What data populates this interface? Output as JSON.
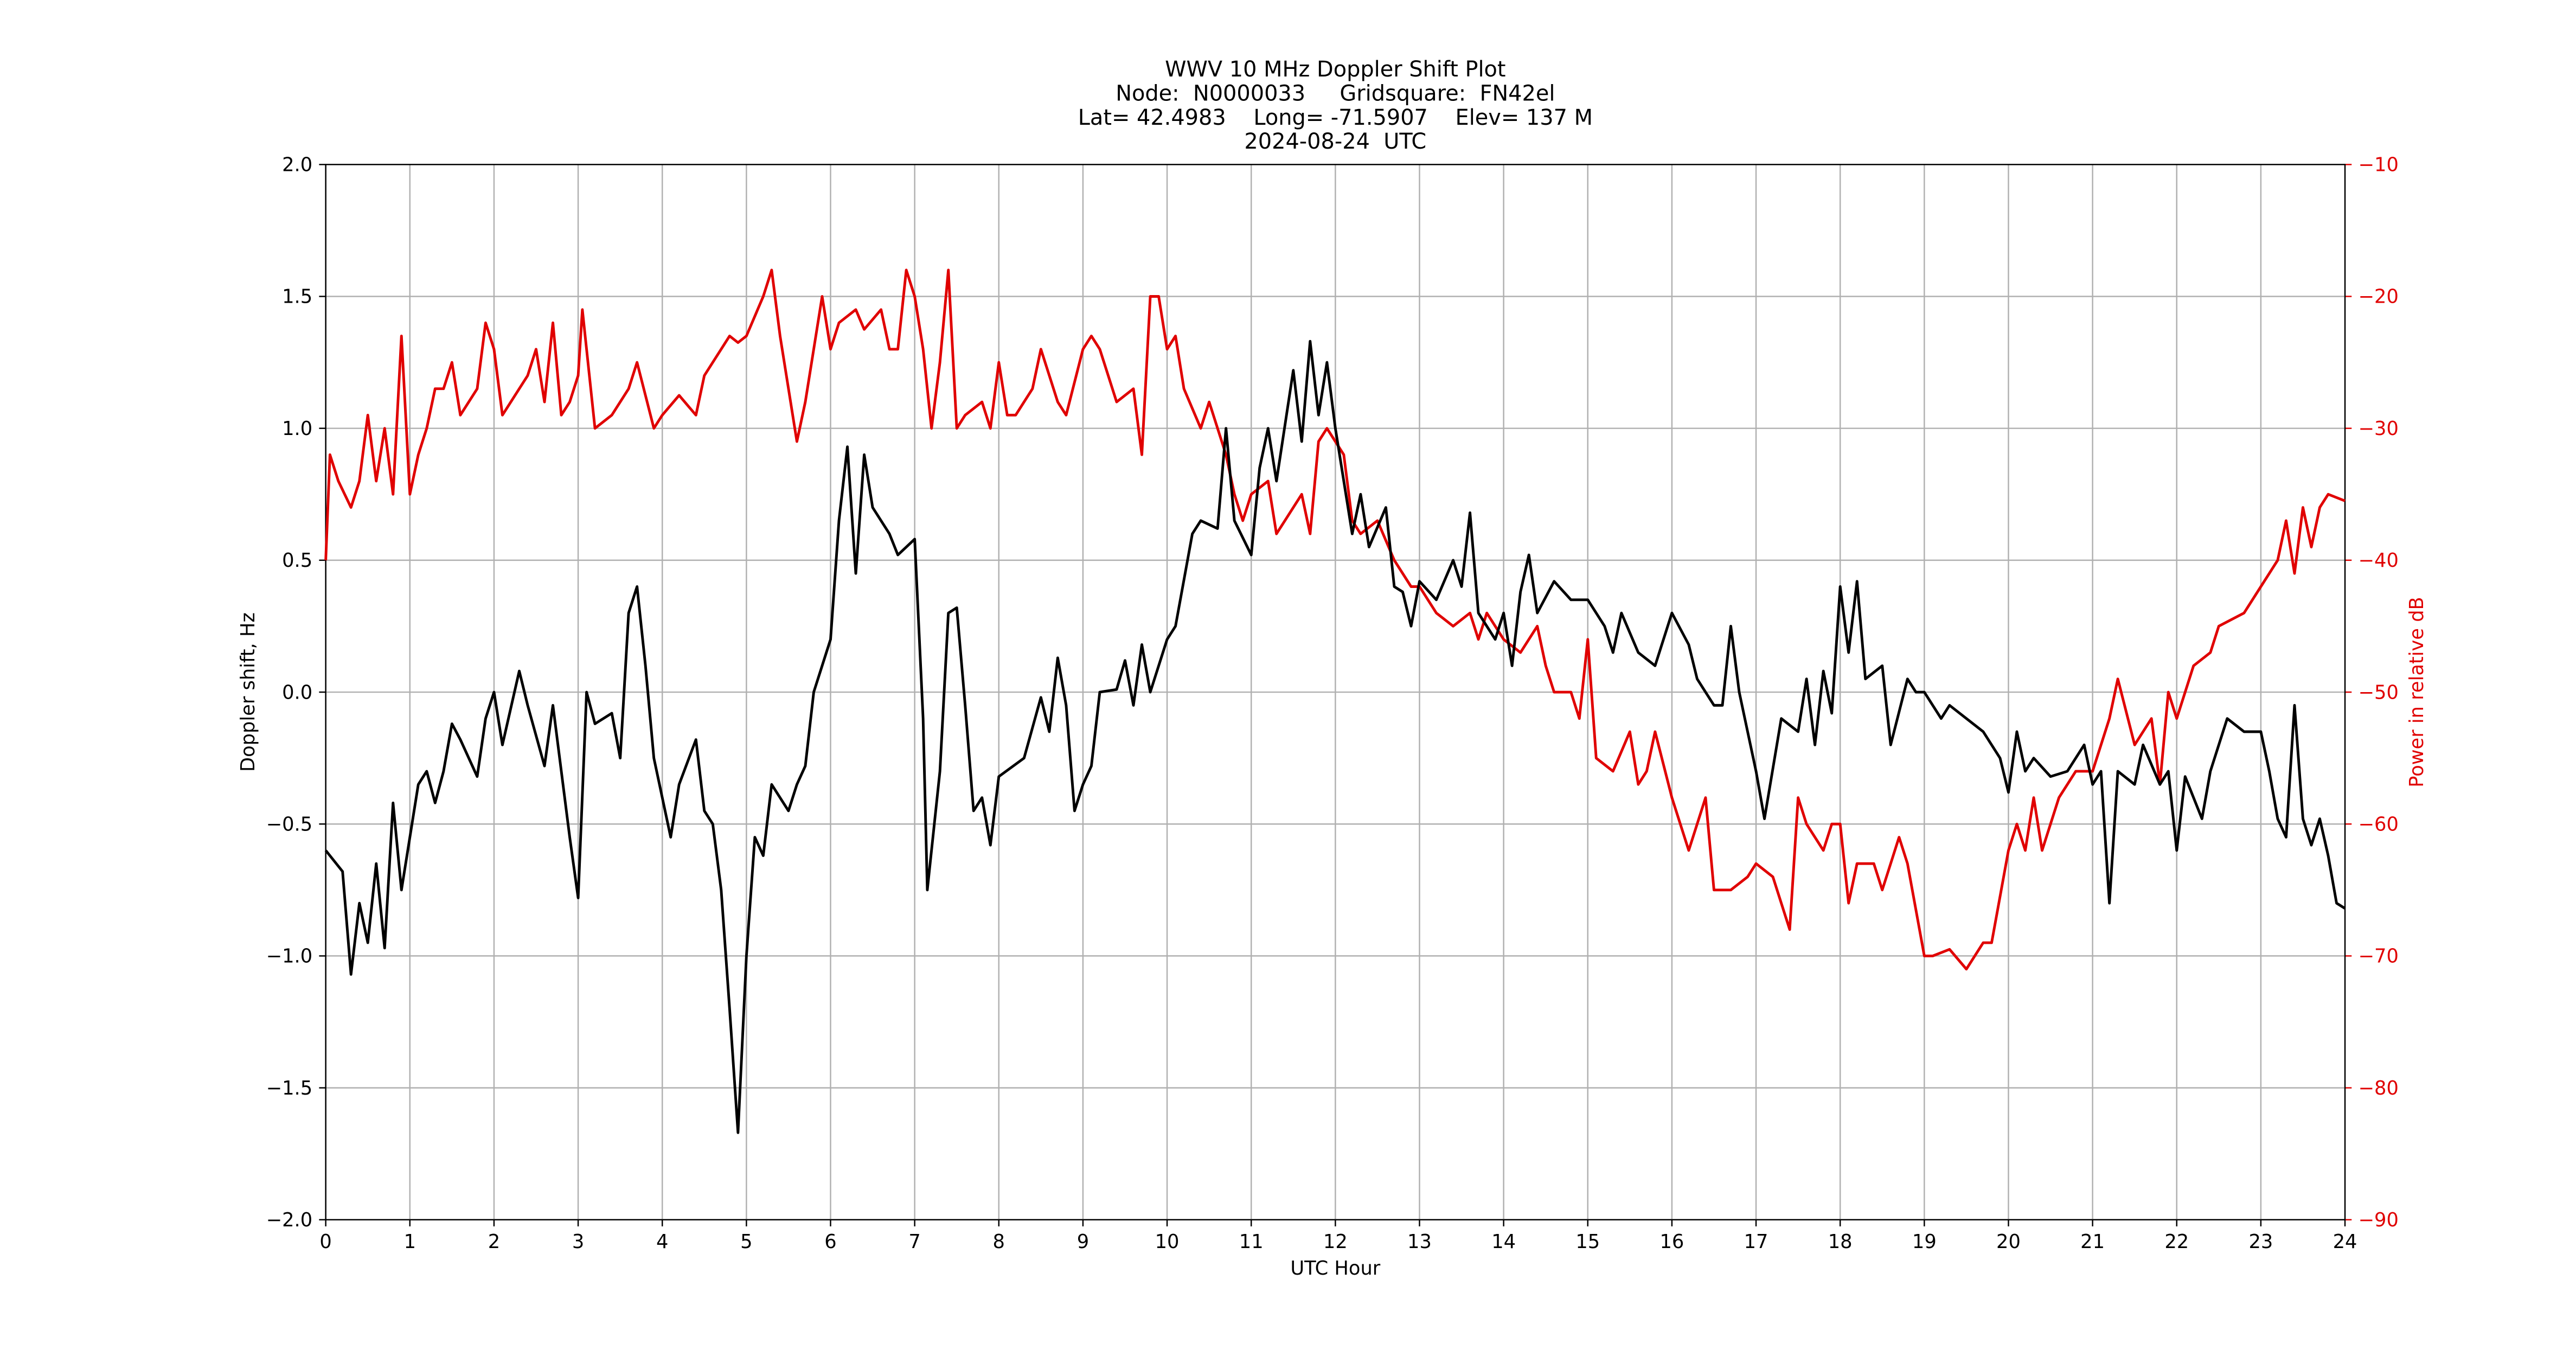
{
  "chart_data": {
    "type": "line",
    "title": [
      "WWV 10 MHz Doppler Shift Plot",
      "Node:  N0000033     Gridsquare:  FN42el",
      "Lat= 42.4983    Long= -71.5907    Elev= 137 M",
      "2024-08-24  UTC"
    ],
    "xlabel": "UTC Hour",
    "ylabel": "Doppler shift, Hz",
    "y2label": "Power in relative dB",
    "xlim": [
      0,
      24
    ],
    "xticks": [
      0,
      1,
      2,
      3,
      4,
      5,
      6,
      7,
      8,
      9,
      10,
      11,
      12,
      13,
      14,
      15,
      16,
      17,
      18,
      19,
      20,
      21,
      22,
      23,
      24
    ],
    "ylim": [
      -2,
      2
    ],
    "yticks": [
      {
        "value": -2,
        "label": "−2.0"
      },
      {
        "value": -1.5,
        "label": "−1.5"
      },
      {
        "value": -1,
        "label": "−1.0"
      },
      {
        "value": -0.5,
        "label": "−0.5"
      },
      {
        "value": 0,
        "label": "0.0"
      },
      0.5,
      {
        "value": 1,
        "label": "1.0"
      },
      1.5,
      {
        "value": 2,
        "label": "2.0"
      }
    ],
    "y2lim": [
      -90,
      -10
    ],
    "y2ticks": [
      {
        "value": -90,
        "label": "−90"
      },
      {
        "value": -80,
        "label": "−80"
      },
      {
        "value": -70,
        "label": "−70"
      },
      {
        "value": -60,
        "label": "−60"
      },
      {
        "value": -50,
        "label": "−50"
      },
      {
        "value": -40,
        "label": "−40"
      },
      {
        "value": -30,
        "label": "−30"
      },
      {
        "value": -20,
        "label": "−20"
      },
      {
        "value": -10,
        "label": "−10"
      }
    ],
    "grid": true,
    "series": [
      {
        "color": "#000000",
        "axis": "y",
        "x": [
          0,
          0.2,
          0.3,
          0.4,
          0.5,
          0.6,
          0.7,
          0.8,
          0.9,
          1,
          1.1,
          1.2,
          1.3,
          1.4,
          1.5,
          1.6,
          1.8,
          1.9,
          2,
          2.1,
          2.3,
          2.4,
          2.6,
          2.7,
          2.9,
          3,
          3.1,
          3.2,
          3.4,
          3.5,
          3.6,
          3.7,
          3.8,
          3.9,
          4.1,
          4.2,
          4.4,
          4.5,
          4.6,
          4.7,
          4.8,
          4.9,
          5,
          5.1,
          5.2,
          5.3,
          5.5,
          5.6,
          5.7,
          5.8,
          6,
          6.1,
          6.2,
          6.3,
          6.4,
          6.5,
          6.7,
          6.8,
          7,
          7.1,
          7.15,
          7.3,
          7.4,
          7.5,
          7.6,
          7.7,
          7.8,
          7.9,
          8,
          8.3,
          8.5,
          8.6,
          8.7,
          8.8,
          8.9,
          9,
          9.1,
          9.2,
          9.4,
          9.5,
          9.6,
          9.7,
          9.8,
          10,
          10.1,
          10.3,
          10.4,
          10.6,
          10.7,
          10.8,
          11,
          11.1,
          11.2,
          11.3,
          11.5,
          11.6,
          11.7,
          11.8,
          11.9,
          12,
          12.2,
          12.3,
          12.4,
          12.6,
          12.7,
          12.8,
          12.9,
          13,
          13.2,
          13.4,
          13.5,
          13.6,
          13.7,
          13.9,
          14,
          14.1,
          14.2,
          14.3,
          14.4,
          14.6,
          14.8,
          15,
          15.2,
          15.3,
          15.4,
          15.6,
          15.8,
          16,
          16.2,
          16.3,
          16.5,
          16.6,
          16.7,
          16.8,
          16.9,
          17,
          17.1,
          17.3,
          17.5,
          17.6,
          17.7,
          17.8,
          17.9,
          18,
          18.1,
          18.2,
          18.3,
          18.5,
          18.6,
          18.8,
          18.9,
          19,
          19.2,
          19.3,
          19.5,
          19.7,
          19.9,
          20,
          20.1,
          20.2,
          20.3,
          20.5,
          20.7,
          20.9,
          21,
          21.1,
          21.2,
          21.3,
          21.5,
          21.6,
          21.8,
          21.9,
          22,
          22.1,
          22.3,
          22.4,
          22.6,
          22.8,
          23,
          23.1,
          23.2,
          23.3,
          23.4,
          23.5,
          23.6,
          23.7,
          23.8,
          23.9,
          24
        ],
        "values": [
          -0.6,
          -0.68,
          -1.07,
          -0.8,
          -0.95,
          -0.65,
          -0.97,
          -0.42,
          -0.75,
          -0.55,
          -0.35,
          -0.3,
          -0.42,
          -0.3,
          -0.12,
          -0.18,
          -0.32,
          -0.1,
          0,
          -0.2,
          0.08,
          -0.05,
          -0.28,
          -0.05,
          -0.55,
          -0.78,
          0,
          -0.12,
          -0.08,
          -0.25,
          0.3,
          0.4,
          0.1,
          -0.25,
          -0.55,
          -0.35,
          -0.18,
          -0.45,
          -0.5,
          -0.75,
          -1.2,
          -1.67,
          -1,
          -0.55,
          -0.62,
          -0.35,
          -0.45,
          -0.35,
          -0.28,
          0,
          0.2,
          0.65,
          0.93,
          0.45,
          0.9,
          0.7,
          0.6,
          0.52,
          0.58,
          -0.1,
          -0.75,
          -0.3,
          0.3,
          0.32,
          -0.05,
          -0.45,
          -0.4,
          -0.58,
          -0.32,
          -0.25,
          -0.02,
          -0.15,
          0.13,
          -0.05,
          -0.45,
          -0.35,
          -0.28,
          0,
          0.01,
          0.12,
          -0.05,
          0.18,
          0,
          0.2,
          0.25,
          0.6,
          0.65,
          0.62,
          1,
          0.65,
          0.52,
          0.85,
          1,
          0.8,
          1.22,
          0.95,
          1.33,
          1.05,
          1.25,
          1,
          0.6,
          0.75,
          0.55,
          0.7,
          0.4,
          0.38,
          0.25,
          0.42,
          0.35,
          0.5,
          0.4,
          0.68,
          0.3,
          0.2,
          0.3,
          0.1,
          0.38,
          0.52,
          0.3,
          0.42,
          0.35,
          0.35,
          0.25,
          0.15,
          0.3,
          0.15,
          0.1,
          0.3,
          0.18,
          0.05,
          -0.05,
          -0.05,
          0.25,
          0,
          -0.15,
          -0.3,
          -0.48,
          -0.1,
          -0.15,
          0.05,
          -0.2,
          0.08,
          -0.08,
          0.4,
          0.15,
          0.42,
          0.05,
          0.1,
          -0.2,
          0.05,
          0,
          0,
          -0.1,
          -0.05,
          -0.1,
          -0.15,
          -0.25,
          -0.38,
          -0.15,
          -0.3,
          -0.25,
          -0.32,
          -0.3,
          -0.2,
          -0.35,
          -0.3,
          -0.8,
          -0.3,
          -0.35,
          -0.2,
          -0.35,
          -0.3,
          -0.6,
          -0.32,
          -0.48,
          -0.3,
          -0.1,
          -0.15,
          -0.15,
          -0.3,
          -0.48,
          -0.55,
          -0.05,
          -0.48,
          -0.58,
          -0.48,
          -0.62,
          -0.8,
          -0.82
        ]
      },
      {
        "color": "#e00000",
        "axis": "y2",
        "x": [
          0,
          0.05,
          0.15,
          0.3,
          0.4,
          0.5,
          0.6,
          0.7,
          0.8,
          0.9,
          1,
          1.1,
          1.2,
          1.3,
          1.4,
          1.5,
          1.6,
          1.8,
          1.9,
          2,
          2.1,
          2.3,
          2.4,
          2.5,
          2.6,
          2.7,
          2.8,
          2.9,
          3,
          3.05,
          3.2,
          3.4,
          3.6,
          3.7,
          3.9,
          4,
          4.2,
          4.4,
          4.5,
          4.6,
          4.8,
          4.9,
          5,
          5.2,
          5.3,
          5.4,
          5.6,
          5.7,
          5.9,
          6,
          6.1,
          6.3,
          6.4,
          6.6,
          6.7,
          6.8,
          6.9,
          7,
          7.1,
          7.2,
          7.3,
          7.4,
          7.5,
          7.6,
          7.8,
          7.9,
          8,
          8.1,
          8.2,
          8.4,
          8.5,
          8.6,
          8.7,
          8.8,
          9,
          9.1,
          9.2,
          9.4,
          9.6,
          9.7,
          9.8,
          9.9,
          10,
          10.1,
          10.2,
          10.4,
          10.5,
          10.7,
          10.8,
          10.9,
          11,
          11.2,
          11.3,
          11.4,
          11.6,
          11.7,
          11.8,
          11.9,
          12,
          12.1,
          12.2,
          12.3,
          12.5,
          12.7,
          12.9,
          13,
          13.2,
          13.4,
          13.6,
          13.7,
          13.8,
          14,
          14.2,
          14.4,
          14.5,
          14.6,
          14.8,
          14.9,
          15,
          15.1,
          15.3,
          15.5,
          15.6,
          15.7,
          15.8,
          16,
          16.2,
          16.3,
          16.4,
          16.5,
          16.7,
          16.9,
          17,
          17.2,
          17.4,
          17.5,
          17.6,
          17.8,
          17.9,
          18,
          18.1,
          18.2,
          18.4,
          18.5,
          18.6,
          18.7,
          18.8,
          19,
          19.1,
          19.3,
          19.5,
          19.7,
          19.8,
          20,
          20.1,
          20.2,
          20.3,
          20.4,
          20.5,
          20.6,
          20.8,
          21,
          21.2,
          21.3,
          21.5,
          21.7,
          21.8,
          21.9,
          22,
          22.2,
          22.4,
          22.5,
          22.8,
          23,
          23.2,
          23.3,
          23.4,
          23.5,
          23.6,
          23.7,
          23.8,
          24
        ],
        "values": [
          -40,
          -32,
          -34,
          -36,
          -34,
          -29,
          -34,
          -30,
          -35,
          -23,
          -35,
          -32,
          -30,
          -27,
          -27,
          -25,
          -29,
          -27,
          -22,
          -24,
          -29,
          -27,
          -26,
          -24,
          -28,
          -22,
          -29,
          -28,
          -26,
          -21,
          -30,
          -29,
          -27,
          -25,
          -30,
          -29,
          -27.5,
          -29,
          -26,
          -25,
          -23,
          -23.5,
          -23,
          -20,
          -18,
          -23,
          -31,
          -28,
          -20,
          -24,
          -22,
          -21,
          -22.5,
          -21,
          -24,
          -24,
          -18,
          -20,
          -24,
          -30,
          -25,
          -18,
          -30,
          -29,
          -28,
          -30,
          -25,
          -29,
          -29,
          -27,
          -24,
          -26,
          -28,
          -29,
          -24,
          -23,
          -24,
          -28,
          -27,
          -32,
          -20,
          -20,
          -24,
          -23,
          -27,
          -30,
          -28,
          -32,
          -35,
          -37,
          -35,
          -34,
          -38,
          -37,
          -35,
          -38,
          -31,
          -30,
          -31,
          -32,
          -37,
          -38,
          -37,
          -40,
          -42,
          -42,
          -44,
          -45,
          -44,
          -46,
          -44,
          -46,
          -47,
          -45,
          -48,
          -50,
          -50,
          -52,
          -46,
          -55,
          -56,
          -53,
          -57,
          -56,
          -53,
          -58,
          -62,
          -60,
          -58,
          -65,
          -65,
          -64,
          -63,
          -64,
          -68,
          -58,
          -60,
          -62,
          -60,
          -60,
          -66,
          -63,
          -63,
          -65,
          -63,
          -61,
          -63,
          -70,
          -70,
          -69.5,
          -71,
          -69,
          -69,
          -62,
          -60,
          -62,
          -58,
          -62,
          -60,
          -58,
          -56,
          -56,
          -52,
          -49,
          -54,
          -52,
          -57,
          -50,
          -52,
          -48,
          -47,
          -45,
          -44,
          -42,
          -40,
          -37,
          -41,
          -36,
          -39,
          -36,
          -35,
          -35.5
        ]
      }
    ]
  }
}
